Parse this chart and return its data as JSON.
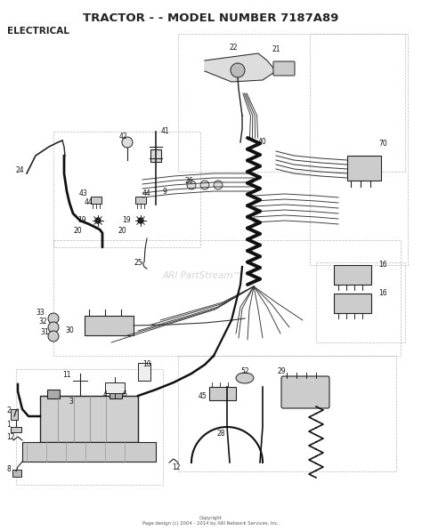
{
  "title": "TRACTOR - - MODEL NUMBER 7187A89",
  "subtitle": "ELECTRICAL",
  "bg_color": "#ffffff",
  "title_fontsize": 9.5,
  "subtitle_fontsize": 7.5,
  "copyright": "Copyright\nPage design (c) 2004 - 2014 by ARI Network Services, Inc.",
  "watermark": "ARI PartStream™",
  "lc": "#222222",
  "wc": "#333333",
  "dc": "#bbbbbb"
}
